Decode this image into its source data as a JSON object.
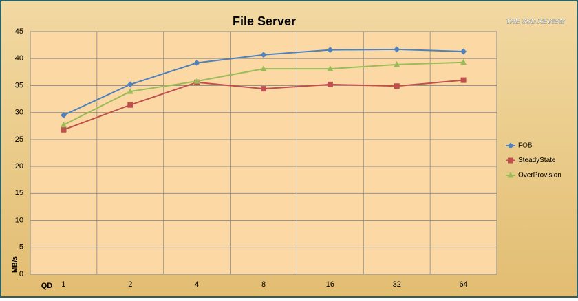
{
  "chart_data": {
    "type": "line",
    "title": "File Server",
    "logo": "THE SSD REVIEW",
    "x_label": "QD",
    "y_label": "MB/s",
    "categories": [
      "1",
      "2",
      "4",
      "8",
      "16",
      "32",
      "64"
    ],
    "series": [
      {
        "name": "FOB",
        "color": "#4f81bd",
        "marker": "diamond",
        "values": [
          29.5,
          35.2,
          39.2,
          40.7,
          41.6,
          41.7,
          41.3
        ]
      },
      {
        "name": "SteadyState",
        "color": "#c0504d",
        "marker": "square",
        "values": [
          26.8,
          31.4,
          35.6,
          34.4,
          35.2,
          34.9,
          36.0
        ]
      },
      {
        "name": "OverProvision",
        "color": "#9bbb59",
        "marker": "triangle",
        "values": [
          27.7,
          33.9,
          35.8,
          38.1,
          38.1,
          38.9,
          39.3
        ]
      }
    ],
    "ylim": [
      0,
      45
    ],
    "yticks": [
      0,
      5,
      10,
      15,
      20,
      25,
      30,
      35,
      40,
      45
    ],
    "grid": true,
    "legend": "right"
  }
}
